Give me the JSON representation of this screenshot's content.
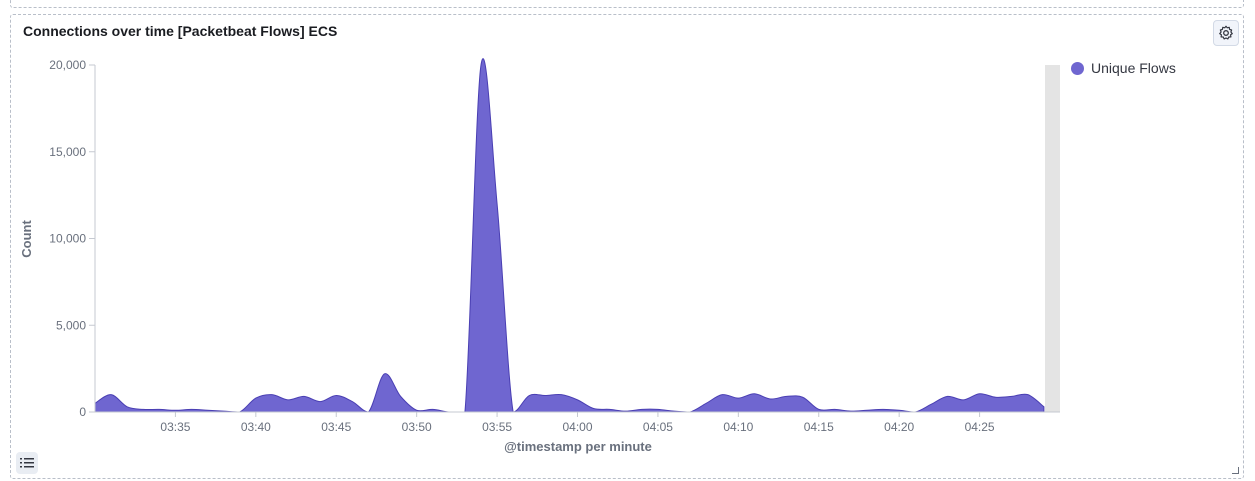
{
  "panel": {
    "title": "Connections over time [Packetbeat Flows] ECS",
    "settings_icon": "gear-icon",
    "legend_toggle_icon": "list-icon"
  },
  "legend": {
    "items": [
      {
        "label": "Unique Flows",
        "color": "#6f66d0"
      }
    ]
  },
  "chart_data": {
    "type": "area",
    "title": "Connections over time [Packetbeat Flows] ECS",
    "xlabel": "@timestamp per minute",
    "ylabel": "Count",
    "xlim": [
      "03:30",
      "04:30"
    ],
    "ylim": [
      0,
      20000
    ],
    "yticks": [
      0,
      5000,
      10000,
      15000,
      20000
    ],
    "ytick_labels": [
      "0",
      "5,000",
      "10,000",
      "15,000",
      "20,000"
    ],
    "xticks": [
      "03:35",
      "03:40",
      "03:45",
      "03:50",
      "03:55",
      "04:00",
      "04:05",
      "04:10",
      "04:15",
      "04:20",
      "04:25"
    ],
    "grid": false,
    "legend_position": "top-right",
    "series": [
      {
        "name": "Unique Flows",
        "color": "#6f66d0",
        "x": [
          "03:30",
          "03:31",
          "03:32",
          "03:33",
          "03:34",
          "03:35",
          "03:36",
          "03:37",
          "03:38",
          "03:39",
          "03:40",
          "03:41",
          "03:42",
          "03:43",
          "03:44",
          "03:45",
          "03:46",
          "03:47",
          "03:48",
          "03:49",
          "03:50",
          "03:51",
          "03:52",
          "03:53",
          "03:54",
          "03:55",
          "03:56",
          "03:57",
          "03:58",
          "03:59",
          "04:00",
          "04:01",
          "04:02",
          "04:03",
          "04:04",
          "04:05",
          "04:06",
          "04:07",
          "04:08",
          "04:09",
          "04:10",
          "04:11",
          "04:12",
          "04:13",
          "04:14",
          "04:15",
          "04:16",
          "04:17",
          "04:18",
          "04:19",
          "04:20",
          "04:21",
          "04:22",
          "04:23",
          "04:24",
          "04:25",
          "04:26",
          "04:27",
          "04:28",
          "04:29"
        ],
        "values": [
          500,
          1000,
          300,
          150,
          150,
          100,
          150,
          100,
          50,
          0,
          800,
          1000,
          700,
          900,
          600,
          950,
          600,
          0,
          2200,
          900,
          100,
          150,
          0,
          0,
          20000,
          12000,
          0,
          950,
          950,
          1000,
          700,
          200,
          150,
          50,
          150,
          150,
          50,
          0,
          500,
          1000,
          800,
          1050,
          750,
          900,
          850,
          150,
          150,
          50,
          100,
          150,
          100,
          0,
          450,
          900,
          700,
          1050,
          850,
          900,
          1000,
          300
        ]
      }
    ]
  }
}
